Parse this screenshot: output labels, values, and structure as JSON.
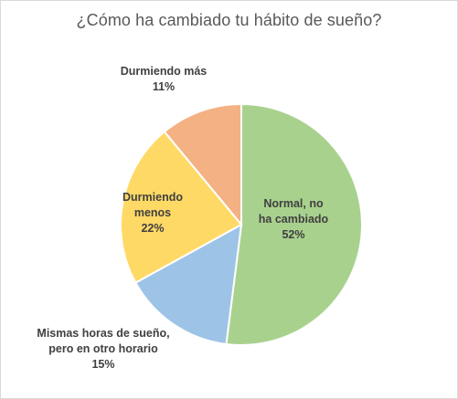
{
  "chart_data": {
    "type": "pie",
    "title": "¿Cómo ha cambiado tu hábito de sueño?",
    "slices": [
      {
        "label_lines": [
          "Normal, no",
          "ha cambiado"
        ],
        "value_label": "52%",
        "value": 52,
        "color": "#a9d18e"
      },
      {
        "label_lines": [
          "Mismas horas de sueño,",
          "pero en otro horario"
        ],
        "value_label": "15%",
        "value": 15,
        "color": "#9dc3e6"
      },
      {
        "label_lines": [
          "Durmiendo",
          "menos"
        ],
        "value_label": "22%",
        "value": 22,
        "color": "#ffd966"
      },
      {
        "label_lines": [
          "Durmiendo más"
        ],
        "value_label": "11%",
        "value": 11,
        "color": "#f4b183"
      }
    ],
    "legend": "none",
    "start_angle": "12 o'clock, clockwise"
  }
}
